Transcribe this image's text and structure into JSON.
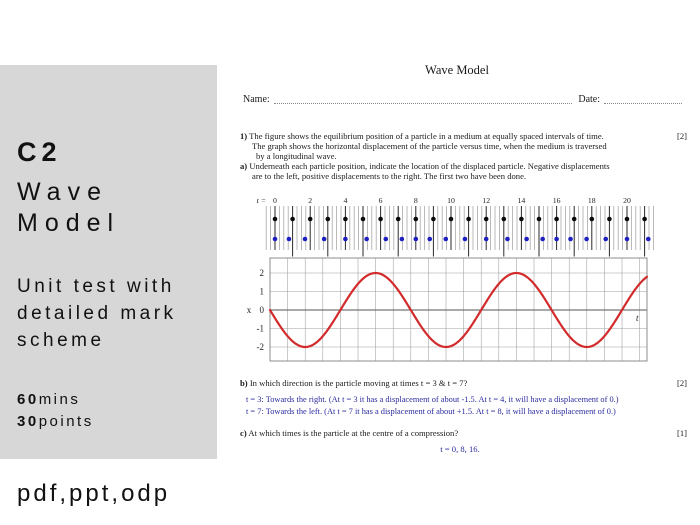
{
  "sidebar": {
    "bg_color": "#d7d7d7",
    "code": "C2",
    "title_line1": "Wave",
    "title_line2": "Model",
    "subtitle_line1": "Unit test with",
    "subtitle_line2": "detailed mark",
    "subtitle_line3": "scheme",
    "duration_value": "60",
    "duration_unit": "mins",
    "points_value": "30",
    "points_unit": "points",
    "formats": "pdf,ppt,odp"
  },
  "document": {
    "title": "Wave Model",
    "name_label": "Name:",
    "date_label": "Date:",
    "answer_color": "#2b2b9e",
    "q1": {
      "number": "1)",
      "marks": "[2]",
      "line1": "The figure shows the equilibrium position of a particle in a medium at equally spaced intervals of time.",
      "line2": "The graph shows the horizontal displacement of the particle versus time, when the medium is traversed",
      "line3": "by a longitudinal wave."
    },
    "qa": {
      "number": "a)",
      "line1": "Underneath each particle position, indicate the location of the displaced particle. Negative displacements",
      "line2": "are to the left, positive displacements to the right. The first two have been done."
    },
    "qb": {
      "number": "b)",
      "text": "In which direction is the particle moving at times t = 3 & t = 7?",
      "marks": "[2]",
      "answer_line1": "t = 3: Towards the right. (At t = 3 it has a displacement of about -1.5. At t = 4, it will have a displacement of 0.)",
      "answer_line2": "t = 7: Towards the left. (At t = 7 it has a displacement of about +1.5. At t = 8, it will have a displacement of 0.)"
    },
    "qc": {
      "number": "c)",
      "text": "At which times is the particle at the centre of a compression?",
      "marks": "[1]",
      "answer": "t = 0, 8, 16."
    }
  },
  "chart_data": [
    {
      "type": "scatter",
      "name": "particle-displacement-diagram",
      "t_prefix_label": "t =",
      "tick_labels": [
        0,
        2,
        4,
        6,
        8,
        10,
        12,
        14,
        16,
        18,
        20
      ],
      "n_particles": 22,
      "equilibrium_t": [
        0,
        1,
        2,
        3,
        4,
        5,
        6,
        7,
        8,
        9,
        10,
        11,
        12,
        13,
        14,
        15,
        16,
        17,
        18,
        19,
        20,
        21
      ],
      "displacements": [
        0,
        -1.41,
        -2,
        -1.41,
        0,
        1.41,
        2,
        1.41,
        0,
        -1.41,
        -2,
        -1.41,
        0,
        1.41,
        2,
        1.41,
        0,
        -1.41,
        -2,
        -1.41,
        0,
        1.41
      ],
      "formula": "x(t) = -2*sin(2*pi*t/8)",
      "equilibrium_color": "#0a0a0a",
      "displaced_color": "#1f1fbf"
    },
    {
      "type": "line",
      "name": "displacement-vs-time-graph",
      "ylabel": "x",
      "xlabel": "t",
      "yticks": [
        2,
        1,
        0,
        -1,
        -2
      ],
      "ylim": [
        -2.8,
        2.8
      ],
      "x_range": [
        0,
        21.4
      ],
      "amplitude": 2,
      "period": 8,
      "formula": "x(t) = -2*sin(2*pi*t/8)",
      "grid": true,
      "line_color": "#d32b2b",
      "samples_at_integer_t": {
        "t": [
          0,
          1,
          2,
          3,
          4,
          5,
          6,
          7,
          8,
          9,
          10,
          11,
          12,
          13,
          14,
          15,
          16,
          17,
          18,
          19,
          20,
          21
        ],
        "x": [
          0,
          -1.41,
          -2,
          -1.41,
          0,
          1.41,
          2,
          1.41,
          0,
          -1.41,
          -2,
          -1.41,
          0,
          1.41,
          2,
          1.41,
          0,
          -1.41,
          -2,
          -1.41,
          0,
          1.41
        ]
      }
    }
  ]
}
